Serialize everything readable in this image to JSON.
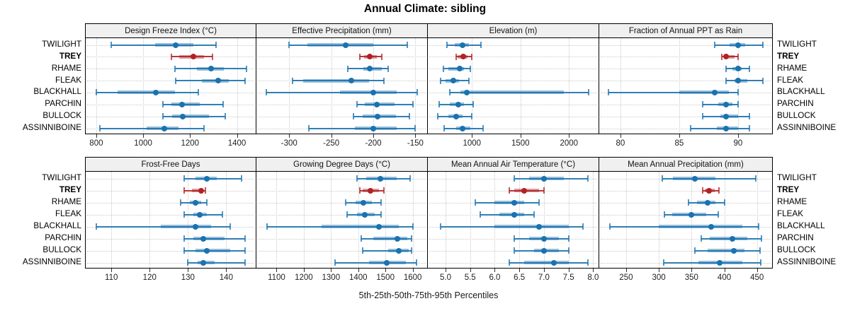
{
  "title": "Annual Climate: sibling",
  "axis_caption": "5th-25th-50th-75th-95th Percentiles",
  "colors": {
    "normal": "#1a72b0",
    "highlight": "#b22126",
    "strip_bg": "#F0F0F0",
    "grid": "#c9c9c9",
    "panel_border": "#000000"
  },
  "chart_data": {
    "type": "dotplot-percentiles",
    "percentiles": [
      5,
      25,
      50,
      75,
      95
    ],
    "rows": [
      "TWILIGHT",
      "TREY",
      "RHAME",
      "FLEAK",
      "BLACKHALL",
      "PARCHIN",
      "BULLOCK",
      "ASSINNIBOINE"
    ],
    "highlight_row": "TREY",
    "layout": {
      "nrow": 2,
      "ncol": 4,
      "legend": "none",
      "grid": "dotted"
    },
    "panels": [
      {
        "title": "Design Freeze Index (°C)",
        "ticks": [
          800,
          1000,
          1200,
          1400
        ],
        "decimals": 0,
        "xlim": [
          755,
          1480
        ],
        "series": [
          {
            "site": "TWILIGHT",
            "p": [
              865,
              1050,
              1140,
              1215,
              1310
            ]
          },
          {
            "site": "TREY",
            "p": [
              1120,
              1155,
              1215,
              1260,
              1295
            ]
          },
          {
            "site": "RHAME",
            "p": [
              1135,
              1230,
              1290,
              1345,
              1440
            ]
          },
          {
            "site": "FLEAK",
            "p": [
              1140,
              1250,
              1320,
              1365,
              1435
            ]
          },
          {
            "site": "BLACKHALL",
            "p": [
              800,
              890,
              1055,
              1135,
              1235
            ]
          },
          {
            "site": "PARCHIN",
            "p": [
              1085,
              1120,
              1165,
              1240,
              1340
            ]
          },
          {
            "site": "BULLOCK",
            "p": [
              1085,
              1125,
              1170,
              1280,
              1350
            ]
          },
          {
            "site": "ASSINNIBOINE",
            "p": [
              815,
              1015,
              1090,
              1150,
              1260
            ]
          }
        ]
      },
      {
        "title": "Effective Precipitation (mm)",
        "ticks": [
          -300,
          -250,
          -200,
          -150
        ],
        "decimals": 0,
        "xlim": [
          -339,
          -136
        ],
        "series": [
          {
            "site": "TWILIGHT",
            "p": [
              -300,
              -278,
              -233,
              -200,
              -160
            ]
          },
          {
            "site": "TREY",
            "p": [
              -216,
              -211,
              -204,
              -196,
              -190
            ]
          },
          {
            "site": "RHAME",
            "p": [
              -230,
              -212,
              -204,
              -190,
              -182
            ]
          },
          {
            "site": "FLEAK",
            "p": [
              -296,
              -283,
              -226,
              -205,
              -187
            ]
          },
          {
            "site": "BLACKHALL",
            "p": [
              -327,
              -240,
              -200,
              -172,
              -148
            ]
          },
          {
            "site": "PARCHIN",
            "p": [
              -219,
              -210,
              -196,
              -175,
              -153
            ]
          },
          {
            "site": "BULLOCK",
            "p": [
              -224,
              -213,
              -195,
              -173,
              -157
            ]
          },
          {
            "site": "ASSINNIBOINE",
            "p": [
              -277,
              -222,
              -200,
              -172,
              -150
            ]
          }
        ]
      },
      {
        "title": "Elevation (m)",
        "ticks": [
          1000,
          1500,
          2000
        ],
        "decimals": 0,
        "xlim": [
          545,
          2305
        ],
        "series": [
          {
            "site": "TWILIGHT",
            "p": [
              740,
              825,
              905,
              970,
              1095
            ]
          },
          {
            "site": "TREY",
            "p": [
              840,
              855,
              910,
              955,
              1000
            ]
          },
          {
            "site": "RHAME",
            "p": [
              705,
              760,
              875,
              920,
              985
            ]
          },
          {
            "site": "FLEAK",
            "p": [
              680,
              725,
              810,
              870,
              965
            ]
          },
          {
            "site": "BLACKHALL",
            "p": [
              775,
              880,
              950,
              1950,
              2200
            ]
          },
          {
            "site": "PARCHIN",
            "p": [
              660,
              775,
              860,
              920,
              1015
            ]
          },
          {
            "site": "BULLOCK",
            "p": [
              650,
              760,
              835,
              905,
              1000
            ]
          },
          {
            "site": "ASSINNIBOINE",
            "p": [
              710,
              835,
              905,
              980,
              1115
            ]
          }
        ]
      },
      {
        "title": "Fraction of Annual PPT as Rain",
        "ticks": [
          80,
          85,
          90
        ],
        "decimals": 0,
        "xlim": [
          78.2,
          92.9
        ],
        "series": [
          {
            "site": "TWILIGHT",
            "p": [
              88,
              89.3,
              90,
              90.6,
              92.1
            ]
          },
          {
            "site": "TREY",
            "p": [
              88.6,
              88.8,
              89,
              89.7,
              90
            ]
          },
          {
            "site": "RHAME",
            "p": [
              89,
              89.5,
              90,
              90.3,
              91
            ]
          },
          {
            "site": "FLEAK",
            "p": [
              89,
              89.7,
              90,
              90.8,
              92.1
            ]
          },
          {
            "site": "BLACKHALL",
            "p": [
              79,
              85,
              88,
              89.2,
              90
            ]
          },
          {
            "site": "PARCHIN",
            "p": [
              87,
              88.3,
              89,
              89.5,
              90
            ]
          },
          {
            "site": "BULLOCK",
            "p": [
              87,
              88.5,
              89,
              90,
              91
            ]
          },
          {
            "site": "ASSINNIBOINE",
            "p": [
              86,
              88.2,
              89,
              90,
              91
            ]
          }
        ]
      },
      {
        "title": "Frost-Free Days",
        "ticks": [
          110,
          120,
          130,
          140
        ],
        "decimals": 0,
        "xlim": [
          103.3,
          147.7
        ],
        "series": [
          {
            "site": "TWILIGHT",
            "p": [
              129,
              132,
              135,
              137.5,
              144
            ]
          },
          {
            "site": "TREY",
            "p": [
              129,
              131,
              133.5,
              134,
              134.5
            ]
          },
          {
            "site": "RHAME",
            "p": [
              128,
              130.5,
              132,
              133.5,
              135
            ]
          },
          {
            "site": "FLEAK",
            "p": [
              129,
              131.5,
              133,
              135,
              139
            ]
          },
          {
            "site": "BLACKHALL",
            "p": [
              106,
              123,
              132,
              136,
              141
            ]
          },
          {
            "site": "PARCHIN",
            "p": [
              129,
              131.5,
              134,
              139.5,
              145
            ]
          },
          {
            "site": "BULLOCK",
            "p": [
              129,
              132,
              135,
              141,
              145
            ]
          },
          {
            "site": "ASSINNIBOINE",
            "p": [
              130,
              132.5,
              134,
              137,
              145
            ]
          }
        ]
      },
      {
        "title": "Growing Degree Days (°C)",
        "ticks": [
          1100,
          1200,
          1300,
          1400,
          1500,
          1600
        ],
        "decimals": 0,
        "xlim": [
          1026,
          1653
        ],
        "series": [
          {
            "site": "TWILIGHT",
            "p": [
              1395,
              1430,
              1480,
              1540,
              1590
            ]
          },
          {
            "site": "TREY",
            "p": [
              1405,
              1415,
              1445,
              1475,
              1495
            ]
          },
          {
            "site": "RHAME",
            "p": [
              1355,
              1390,
              1420,
              1450,
              1485
            ]
          },
          {
            "site": "FLEAK",
            "p": [
              1360,
              1395,
              1425,
              1460,
              1485
            ]
          },
          {
            "site": "BLACKHALL",
            "p": [
              1065,
              1265,
              1475,
              1550,
              1600
            ]
          },
          {
            "site": "PARCHIN",
            "p": [
              1410,
              1455,
              1545,
              1580,
              1595
            ]
          },
          {
            "site": "BULLOCK",
            "p": [
              1415,
              1510,
              1550,
              1585,
              1595
            ]
          },
          {
            "site": "ASSINNIBOINE",
            "p": [
              1315,
              1440,
              1505,
              1575,
              1615
            ]
          }
        ]
      },
      {
        "title": "Mean Annual Air Temperature (°C)",
        "ticks": [
          5.0,
          5.5,
          6.0,
          6.5,
          7.0,
          7.5,
          8.0
        ],
        "decimals": 1,
        "xlim": [
          4.64,
          8.11
        ],
        "series": [
          {
            "site": "TWILIGHT",
            "p": [
              6.4,
              6.7,
              7.0,
              7.4,
              7.9
            ]
          },
          {
            "site": "TREY",
            "p": [
              6.3,
              6.4,
              6.6,
              6.9,
              7.0
            ]
          },
          {
            "site": "RHAME",
            "p": [
              5.6,
              6.0,
              6.4,
              6.6,
              6.9
            ]
          },
          {
            "site": "FLEAK",
            "p": [
              5.7,
              6.1,
              6.4,
              6.6,
              6.8
            ]
          },
          {
            "site": "BLACKHALL",
            "p": [
              4.9,
              6.0,
              6.9,
              7.5,
              7.8
            ]
          },
          {
            "site": "PARCHIN",
            "p": [
              6.4,
              6.7,
              7.0,
              7.3,
              7.5
            ]
          },
          {
            "site": "BULLOCK",
            "p": [
              6.4,
              6.8,
              7.0,
              7.3,
              7.5
            ]
          },
          {
            "site": "ASSINNIBOINE",
            "p": [
              6.3,
              6.6,
              7.2,
              7.5,
              7.9
            ]
          }
        ]
      },
      {
        "title": "Mean Annual Precipitation (mm)",
        "ticks": [
          250,
          300,
          350,
          400,
          450
        ],
        "decimals": 0,
        "xlim": [
          209,
          473
        ],
        "series": [
          {
            "site": "TWILIGHT",
            "p": [
              305,
              322,
              355,
              386,
              448
            ]
          },
          {
            "site": "TREY",
            "p": [
              367,
              370,
              377,
              385,
              392
            ]
          },
          {
            "site": "RHAME",
            "p": [
              345,
              358,
              375,
              386,
              400
            ]
          },
          {
            "site": "FLEAK",
            "p": [
              308,
              320,
              350,
              372,
              391
            ]
          },
          {
            "site": "BLACKHALL",
            "p": [
              225,
              300,
              380,
              428,
              452
            ]
          },
          {
            "site": "PARCHIN",
            "p": [
              365,
              378,
              412,
              435,
              457
            ]
          },
          {
            "site": "BULLOCK",
            "p": [
              355,
              375,
              415,
              431,
              455
            ]
          },
          {
            "site": "ASSINNIBOINE",
            "p": [
              307,
              360,
              393,
              428,
              456
            ]
          }
        ]
      }
    ]
  }
}
